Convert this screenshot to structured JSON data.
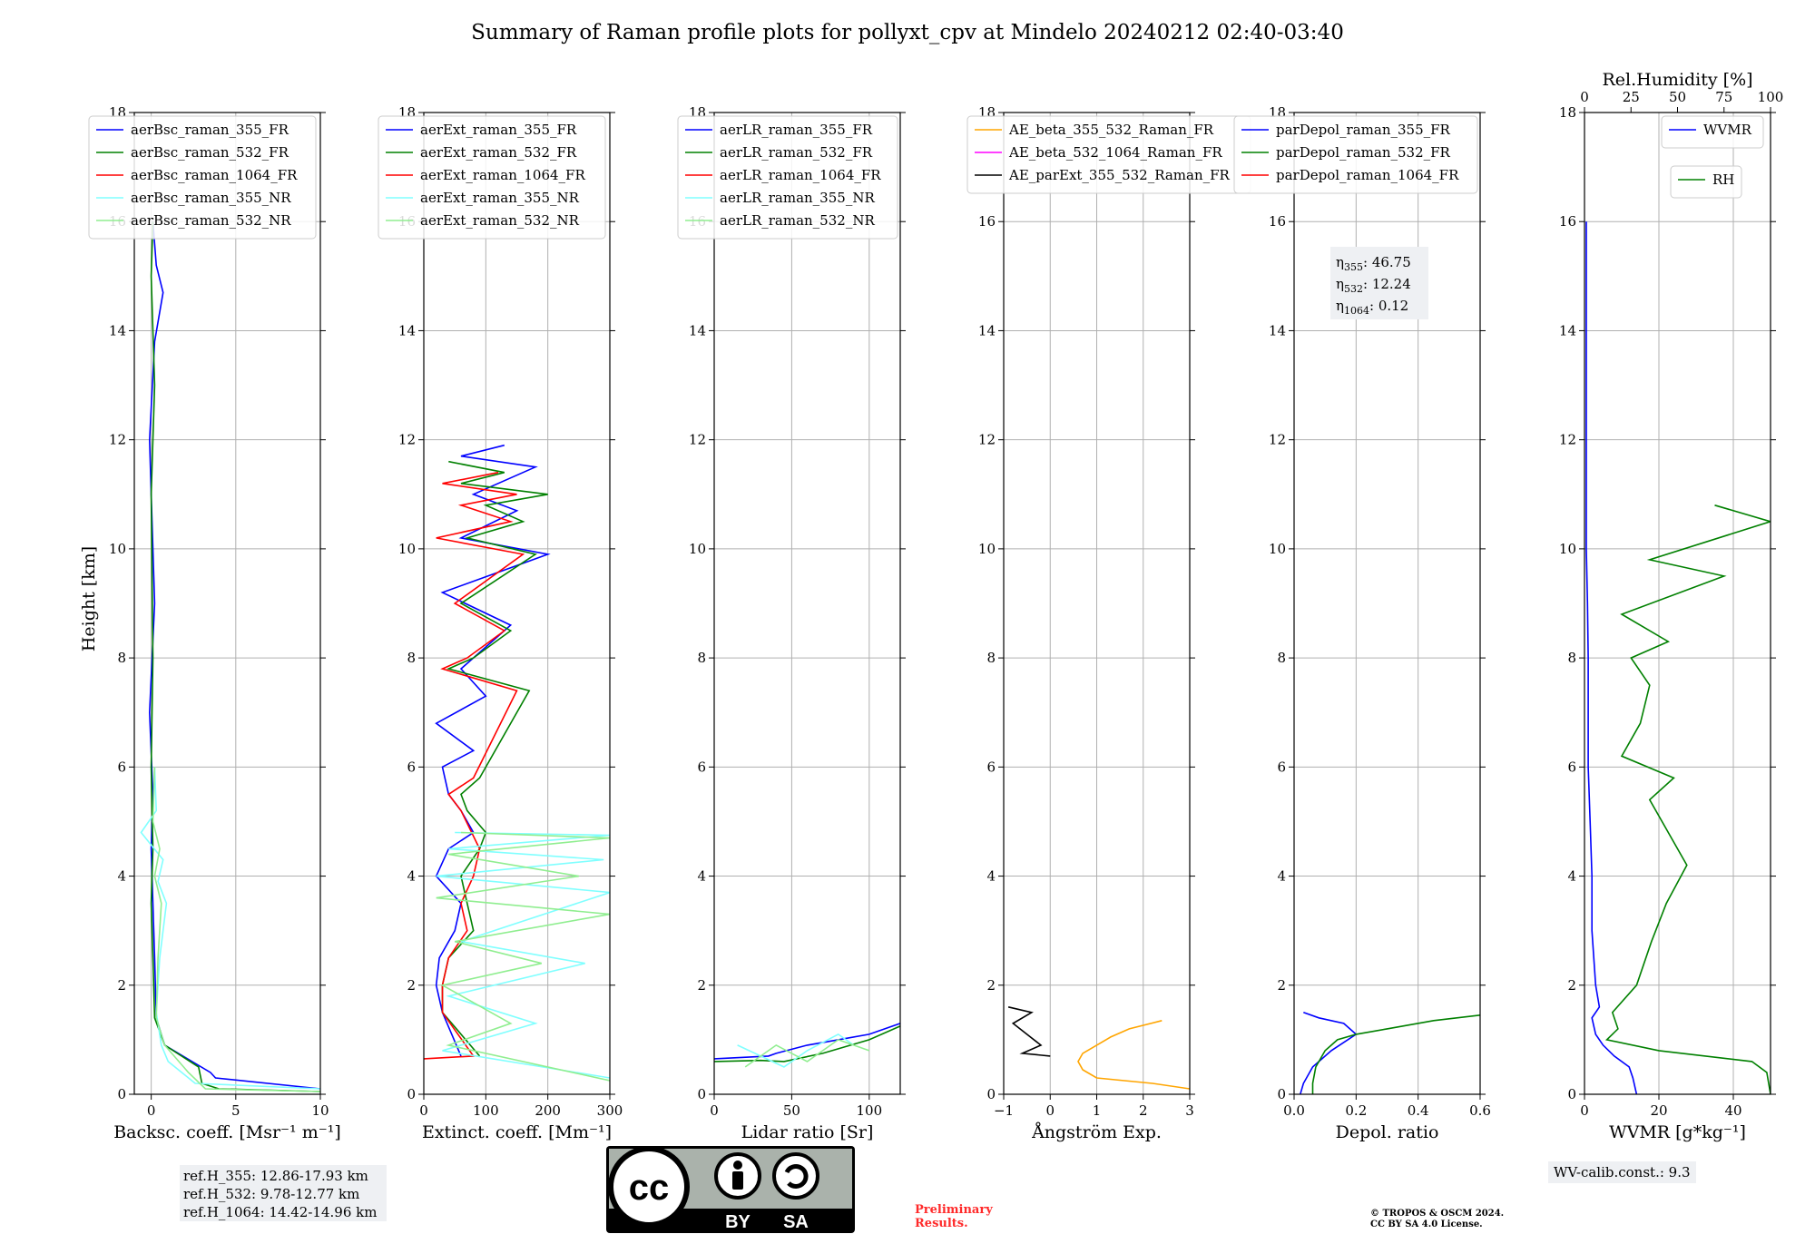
{
  "title": "Summary of Raman profile plots for pollyxt_cpv at Mindelo 20240212 02:40-03:40",
  "y_axis": {
    "label": "Height [km]",
    "range": [
      0,
      18
    ],
    "ticks": [
      "0",
      "2",
      "4",
      "6",
      "8",
      "10",
      "12",
      "14",
      "16",
      "18"
    ]
  },
  "chart_data": [
    {
      "type": "line",
      "panel": "backscatter",
      "xlabel": "Backsc. coeff. [Msr⁻¹ m⁻¹]",
      "xlim": [
        -1,
        10
      ],
      "xticks": [
        "0",
        "5",
        "10"
      ],
      "series": [
        {
          "name": "aerBsc_raman_355_FR",
          "color": "#0000ff",
          "x": [
            10,
            3.8,
            3.5,
            0.8,
            0.3,
            0.2,
            0.1,
            0.0,
            0.1,
            -0.1,
            0.2,
            0.0,
            -0.1,
            0.2,
            0.7,
            0.3,
            0.1
          ],
          "y": [
            0.1,
            0.3,
            0.4,
            0.9,
            1.4,
            2.5,
            3.5,
            4.5,
            5.5,
            7,
            9,
            11,
            12,
            13.8,
            14.7,
            15.2,
            16
          ]
        },
        {
          "name": "aerBsc_raman_532_FR",
          "color": "#008000",
          "x": [
            10,
            4.0,
            3.0,
            2.8,
            0.8,
            0.2,
            0.1,
            0.0,
            0.1,
            0.0,
            0.1,
            0.0,
            0.2,
            0.0,
            0.1
          ],
          "y": [
            0.05,
            0.1,
            0.2,
            0.5,
            0.9,
            1.4,
            2.5,
            3.5,
            4.5,
            6,
            8,
            11,
            13,
            15,
            16
          ]
        },
        {
          "name": "aerBsc_raman_1064_FR",
          "color": "#ff0000",
          "x": [],
          "y": []
        },
        {
          "name": "aerBsc_raman_355_NR",
          "color": "#80ffff",
          "x": [
            10,
            2.6,
            1.0,
            0.6,
            0.3,
            0.5,
            0.9,
            0.4,
            0.7,
            -0.6,
            0.3,
            0.2
          ],
          "y": [
            0.1,
            0.2,
            0.6,
            0.9,
            1.5,
            2.5,
            3.5,
            3.9,
            4.3,
            4.8,
            5.2,
            6
          ]
        },
        {
          "name": "aerBsc_raman_532_NR",
          "color": "#90ee90",
          "x": [
            10,
            3.2,
            2.2,
            0.8,
            0.3,
            0.4,
            0.6,
            0.2,
            0.5,
            0.1,
            0.2
          ],
          "y": [
            0.05,
            0.1,
            0.4,
            0.9,
            1.4,
            2.5,
            3.5,
            4.0,
            4.5,
            5.0,
            6
          ]
        }
      ]
    },
    {
      "type": "line",
      "panel": "extinction",
      "xlabel": "Extinct. coeff. [Mm⁻¹]",
      "xlim": [
        0,
        300
      ],
      "xticks": [
        "0",
        "100",
        "200",
        "300"
      ],
      "series": [
        {
          "name": "aerExt_raman_355_FR",
          "color": "#0000ff",
          "x": [
            60,
            30,
            20,
            25,
            50,
            60,
            20,
            40,
            80,
            60,
            40,
            30,
            80,
            20,
            100,
            60,
            140,
            30,
            200,
            60,
            150,
            80,
            180,
            60,
            130
          ],
          "y": [
            0.7,
            1.5,
            2.0,
            2.5,
            3.0,
            3.5,
            4.0,
            4.5,
            4.8,
            5.2,
            5.5,
            6.0,
            6.3,
            6.8,
            7.3,
            7.8,
            8.6,
            9.2,
            9.9,
            10.2,
            10.7,
            11.0,
            11.5,
            11.7,
            11.9
          ]
        },
        {
          "name": "aerExt_raman_532_FR",
          "color": "#008000",
          "x": [
            90,
            30,
            30,
            40,
            80,
            70,
            60,
            90,
            100,
            70,
            60,
            90,
            170,
            40,
            80,
            140,
            60,
            180,
            70,
            160,
            100,
            200,
            60,
            130,
            40
          ],
          "y": [
            0.7,
            1.5,
            2.0,
            2.5,
            3.0,
            3.5,
            4.0,
            4.5,
            4.8,
            5.2,
            5.5,
            5.8,
            7.4,
            7.8,
            8.0,
            8.5,
            9.0,
            9.9,
            10.2,
            10.5,
            10.8,
            11.0,
            11.2,
            11.4,
            11.6
          ]
        },
        {
          "name": "aerExt_raman_1064_FR",
          "color": "#ff0000",
          "x": [
            0,
            80,
            30,
            30,
            40,
            70,
            60,
            80,
            90,
            60,
            40,
            80,
            150,
            30,
            70,
            130,
            50,
            160,
            20,
            140,
            60,
            150,
            30,
            120
          ],
          "y": [
            0.65,
            0.7,
            1.5,
            2.0,
            2.5,
            3.0,
            3.5,
            4.0,
            4.5,
            5.2,
            5.5,
            5.8,
            7.4,
            7.8,
            8.0,
            8.5,
            9.0,
            9.9,
            10.2,
            10.5,
            10.8,
            11.0,
            11.2,
            11.4
          ]
        },
        {
          "name": "aerExt_raman_355_NR",
          "color": "#80ffff",
          "x": [
            300,
            30,
            180,
            40,
            260,
            60,
            300,
            20,
            290,
            40,
            300,
            50
          ],
          "y": [
            0.3,
            0.8,
            1.3,
            1.8,
            2.4,
            2.8,
            3.7,
            4.0,
            4.3,
            4.5,
            4.75,
            4.8
          ]
        },
        {
          "name": "aerExt_raman_532_NR",
          "color": "#90ee90",
          "x": [
            300,
            40,
            140,
            30,
            190,
            50,
            300,
            20,
            250,
            40,
            300,
            60
          ],
          "y": [
            0.25,
            0.9,
            1.3,
            2.0,
            2.4,
            2.8,
            3.3,
            3.6,
            4.0,
            4.4,
            4.7,
            4.8
          ]
        }
      ]
    },
    {
      "type": "line",
      "panel": "lidar_ratio",
      "xlabel": "Lidar ratio [Sr]",
      "xlim": [
        0,
        120
      ],
      "xticks": [
        "0",
        "50",
        "100"
      ],
      "series": [
        {
          "name": "aerLR_raman_355_FR",
          "color": "#0000ff",
          "x": [
            0,
            35,
            40,
            60,
            80,
            100,
            110,
            120
          ],
          "y": [
            0.65,
            0.7,
            0.75,
            0.9,
            1.0,
            1.1,
            1.2,
            1.3
          ]
        },
        {
          "name": "aerLR_raman_532_FR",
          "color": "#008000",
          "x": [
            0,
            30,
            45,
            70,
            100,
            120
          ],
          "y": [
            0.6,
            0.62,
            0.6,
            0.75,
            1.0,
            1.25
          ]
        },
        {
          "name": "aerLR_raman_1064_FR",
          "color": "#ff0000",
          "x": [],
          "y": []
        },
        {
          "name": "aerLR_raman_355_NR",
          "color": "#80ffff",
          "x": [
            15,
            30,
            45,
            60,
            80,
            90
          ],
          "y": [
            0.9,
            0.7,
            0.5,
            0.8,
            1.1,
            0.9
          ]
        },
        {
          "name": "aerLR_raman_532_NR",
          "color": "#90ee90",
          "x": [
            20,
            40,
            60,
            80,
            100
          ],
          "y": [
            0.5,
            0.9,
            0.6,
            1.0,
            0.8
          ]
        }
      ]
    },
    {
      "type": "line",
      "panel": "angstrom",
      "xlabel": "Ångström Exp.",
      "xlim": [
        -1,
        3
      ],
      "xticks": [
        "−1",
        "0",
        "1",
        "2",
        "3"
      ],
      "series": [
        {
          "name": "AE_beta_355_532_Raman_FR",
          "color": "#ffa500",
          "x": [
            3,
            2.2,
            1.0,
            0.7,
            0.6,
            0.7,
            1.0,
            1.3,
            1.7,
            2.4
          ],
          "y": [
            0.1,
            0.2,
            0.3,
            0.45,
            0.6,
            0.75,
            0.9,
            1.05,
            1.2,
            1.35
          ]
        },
        {
          "name": "AE_beta_532_1064_Raman_FR",
          "color": "#ff00ff",
          "x": [],
          "y": []
        },
        {
          "name": "AE_parExt_355_532_Raman_FR",
          "color": "#000000",
          "x": [
            0,
            -0.6,
            -0.2,
            -0.5,
            -0.8,
            -0.4,
            -0.9
          ],
          "y": [
            0.7,
            0.75,
            0.9,
            1.1,
            1.3,
            1.5,
            1.6
          ]
        }
      ]
    },
    {
      "type": "line",
      "panel": "depolarization",
      "xlabel": "Depol. ratio",
      "xlim": [
        0,
        0.6
      ],
      "xticks": [
        "0.0",
        "0.2",
        "0.4",
        "0.6"
      ],
      "series": [
        {
          "name": "parDepol_raman_355_FR",
          "color": "#0000ff",
          "x": [
            0.02,
            0.03,
            0.06,
            0.12,
            0.2,
            0.16,
            0.08,
            0.03
          ],
          "y": [
            0.0,
            0.2,
            0.5,
            0.8,
            1.1,
            1.3,
            1.4,
            1.5
          ]
        },
        {
          "name": "parDepol_raman_532_FR",
          "color": "#008000",
          "x": [
            0.06,
            0.06,
            0.07,
            0.1,
            0.14,
            0.2,
            0.3,
            0.45,
            0.6
          ],
          "y": [
            0.0,
            0.2,
            0.5,
            0.8,
            1.0,
            1.1,
            1.2,
            1.35,
            1.45
          ]
        },
        {
          "name": "parDepol_raman_1064_FR",
          "color": "#ff0000",
          "x": [],
          "y": []
        }
      ],
      "annotation": {
        "eta355": "46.75",
        "eta532": "12.24",
        "eta1064": "0.12"
      }
    },
    {
      "type": "line",
      "panel": "water_vapor",
      "xlabel": "WVMR [g*kg⁻¹]",
      "xlim": [
        0,
        50
      ],
      "xticks": [
        "0",
        "20",
        "40"
      ],
      "top_axis": {
        "label": "Rel.Humidity [%]",
        "range": [
          0,
          100
        ],
        "ticks": [
          "0",
          "25",
          "50",
          "75",
          "100"
        ]
      },
      "series": [
        {
          "name": "WVMR",
          "color": "#0000ff",
          "x": [
            14,
            13,
            12,
            8,
            5,
            3,
            2,
            4,
            3,
            2,
            2,
            1.5,
            1,
            1,
            1,
            0.8,
            0.5,
            0.5,
            0.5
          ],
          "y": [
            0.0,
            0.3,
            0.5,
            0.7,
            0.9,
            1.1,
            1.4,
            1.6,
            2.0,
            3.0,
            4.0,
            5.0,
            6.0,
            7.0,
            8.0,
            9.0,
            10.0,
            12.0,
            16.0
          ]
        },
        {
          "name": "RH",
          "color": "#008000",
          "axis": "top",
          "x": [
            100,
            98,
            90,
            40,
            12,
            18,
            15,
            28,
            36,
            44,
            55,
            35,
            48,
            20,
            30,
            35,
            25,
            45,
            20,
            75,
            35,
            100,
            70
          ],
          "y": [
            0.0,
            0.4,
            0.6,
            0.8,
            1.0,
            1.2,
            1.5,
            2.0,
            2.8,
            3.5,
            4.2,
            5.4,
            5.8,
            6.2,
            6.8,
            7.5,
            8.0,
            8.3,
            8.8,
            9.5,
            9.8,
            10.5,
            10.8
          ]
        }
      ]
    }
  ],
  "panel_legends": [
    [
      "aerBsc_raman_355_FR",
      "aerBsc_raman_532_FR",
      "aerBsc_raman_1064_FR",
      "aerBsc_raman_355_NR",
      "aerBsc_raman_532_NR"
    ],
    [
      "aerExt_raman_355_FR",
      "aerExt_raman_532_FR",
      "aerExt_raman_1064_FR",
      "aerExt_raman_355_NR",
      "aerExt_raman_532_NR"
    ],
    [
      "aerLR_raman_355_FR",
      "aerLR_raman_532_FR",
      "aerLR_raman_1064_FR",
      "aerLR_raman_355_NR",
      "aerLR_raman_532_NR"
    ],
    [
      "AE_beta_355_532_Raman_FR",
      "AE_beta_532_1064_Raman_FR",
      "AE_parExt_355_532_Raman_FR"
    ],
    [
      "parDepol_raman_355_FR",
      "parDepol_raman_532_FR",
      "parDepol_raman_1064_FR"
    ],
    [
      "WVMR",
      "RH"
    ]
  ],
  "ref_heights": {
    "h355": "ref.H_355: 12.86-17.93 km",
    "h532": "ref.H_532: 9.78-12.77 km",
    "h1064": "ref.H_1064: 14.42-14.96 km"
  },
  "license_badge": {
    "cc": "cc",
    "by": "BY",
    "sa": "SA"
  },
  "preliminary": {
    "line1": "Preliminary",
    "line2": "Results."
  },
  "copyright": {
    "line1": "© TROPOS & OSCM 2024.",
    "line2": "CC BY SA 4.0 License."
  },
  "wv_calib": "WV-calib.const.: 9.3",
  "depol_eta": {
    "eta355_label": "η",
    "sub355": "355",
    "sub532": "532",
    "sub1064": "1064"
  }
}
